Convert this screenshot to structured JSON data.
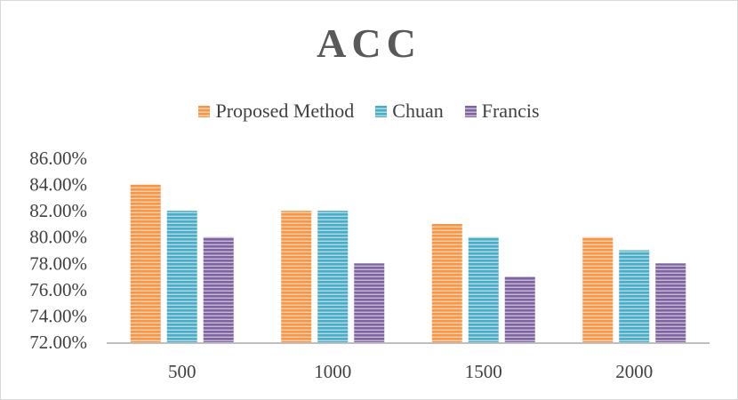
{
  "chart_data": {
    "type": "bar",
    "title": "ACC",
    "xlabel": "",
    "ylabel": "",
    "categories": [
      "500",
      "1000",
      "1500",
      "2000"
    ],
    "series": [
      {
        "name": "Proposed Method",
        "values": [
          84,
          82,
          81,
          80
        ],
        "color": "#f79646"
      },
      {
        "name": "Chuan",
        "values": [
          82,
          82,
          80,
          79
        ],
        "color": "#4bacc6"
      },
      {
        "name": "Francis",
        "values": [
          80,
          78,
          77,
          78
        ],
        "color": "#8064a2"
      }
    ],
    "ylim": [
      72,
      86
    ],
    "yticks": [
      "72.00%",
      "74.00%",
      "76.00%",
      "78.00%",
      "80.00%",
      "82.00%",
      "84.00%",
      "86.00%"
    ],
    "legend_position": "top",
    "grid": false
  }
}
